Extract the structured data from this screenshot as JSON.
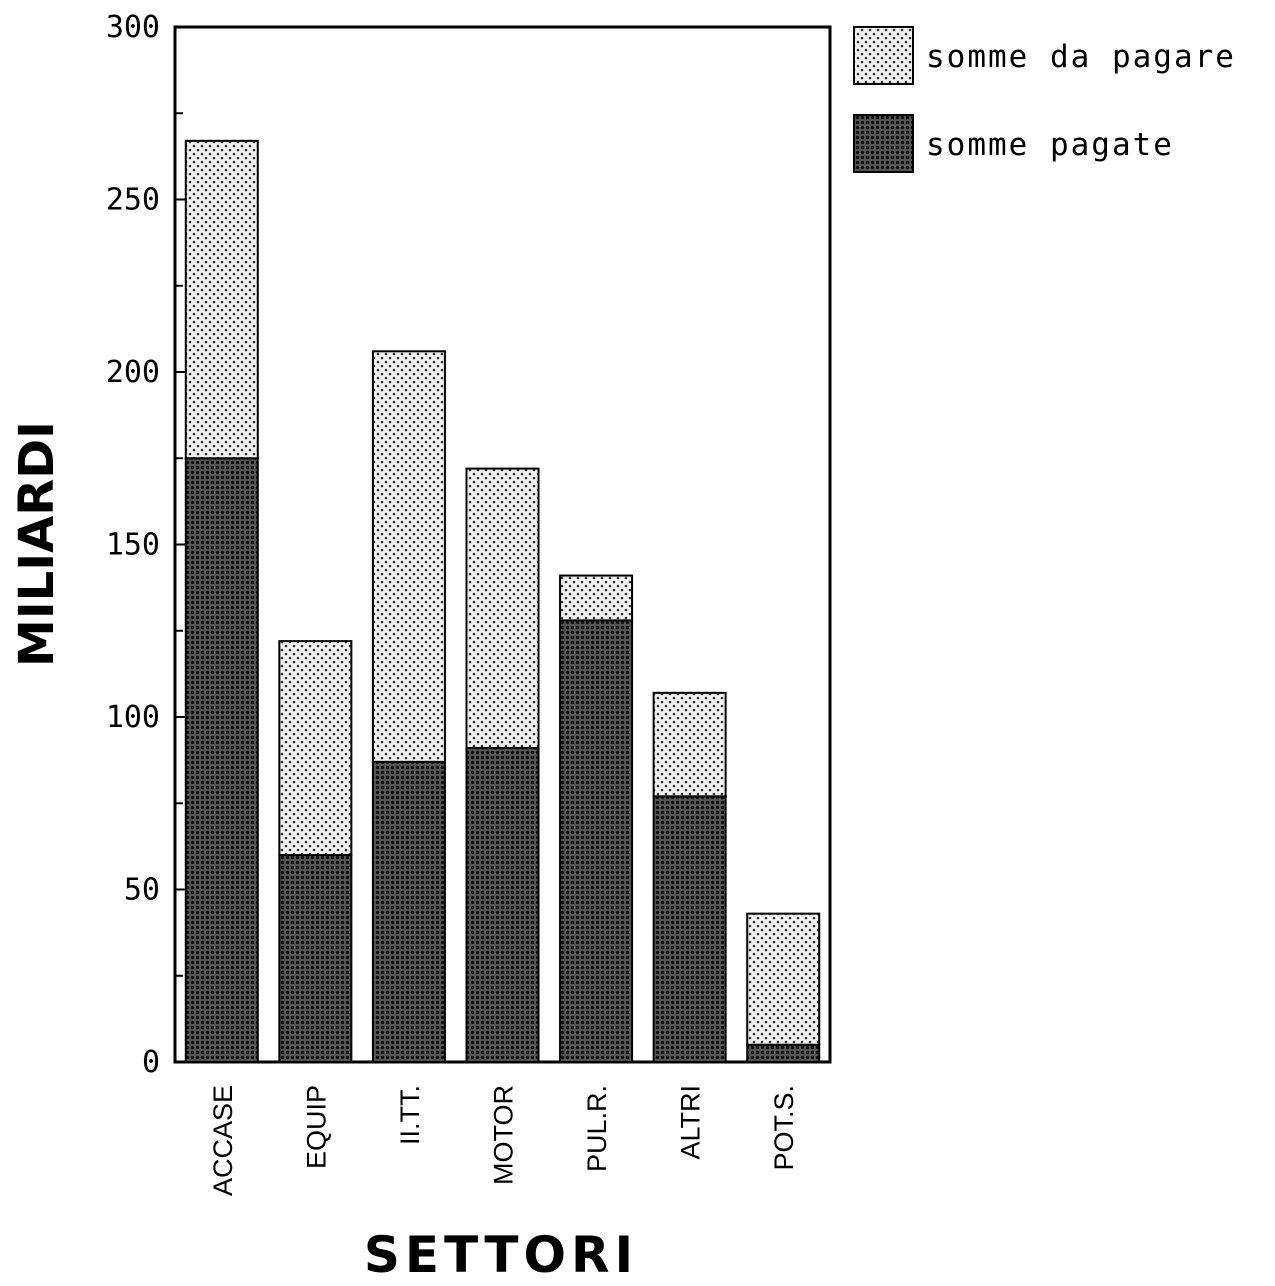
{
  "chart_data": {
    "type": "bar",
    "stacked": true,
    "categories": [
      "ACCASE",
      "EQUIP",
      "II.TT.",
      "MOTOR",
      "PUL.R.",
      "ALTRI",
      "POT.S."
    ],
    "series": [
      {
        "name": "somme pagate",
        "values": [
          175,
          60,
          87,
          91,
          128,
          77,
          5
        ],
        "pattern": "dense-dots",
        "color": "#1a1a1a"
      },
      {
        "name": "somme da pagare",
        "values": [
          92,
          62,
          119,
          81,
          13,
          30,
          38
        ],
        "pattern": "sparse-dots",
        "color": "#cccccc"
      }
    ],
    "xlabel": "SETTORI",
    "ylabel": "MILIARDI",
    "ylim": [
      0,
      300
    ],
    "yticks": [
      0,
      50,
      100,
      150,
      200,
      250,
      300
    ],
    "grid": false,
    "legend_position": "top-right"
  },
  "legend": [
    {
      "label": "somme da pagare"
    },
    {
      "label": "somme pagate"
    }
  ]
}
